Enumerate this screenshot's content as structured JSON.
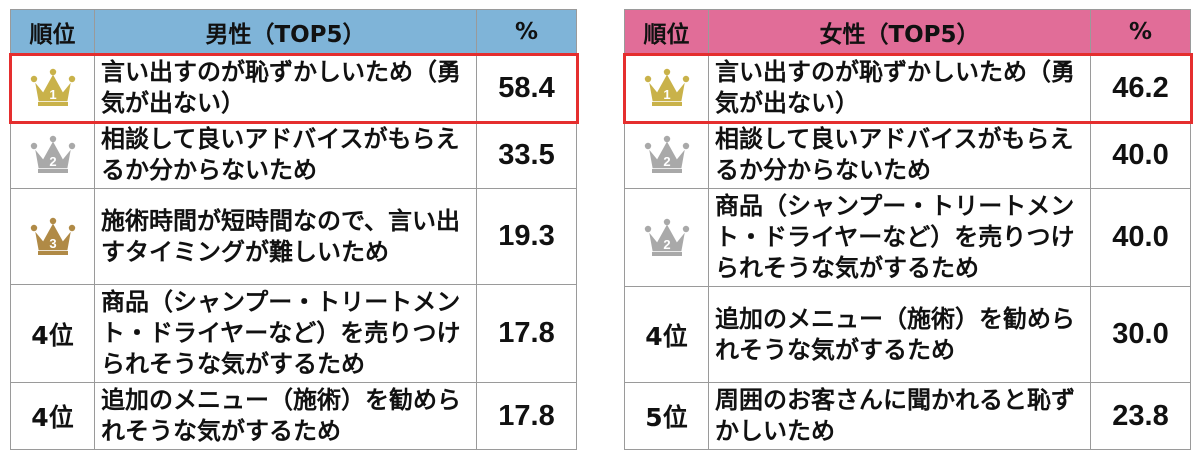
{
  "colors": {
    "male_header": "#7fb4d8",
    "female_header": "#e16d98",
    "highlight": "#e52e2e",
    "gold": "#c9b24a",
    "silver": "#a9a9a9",
    "bronze": "#b08a46"
  },
  "chart_data": [
    {
      "type": "table",
      "headers": {
        "rank": "順位",
        "title": "男性（TOP5）",
        "unit": "%"
      },
      "rows": [
        {
          "rank_icon": "gold-crown-icon",
          "rank_num": "1",
          "rank_label": "",
          "reason": "言い出すのが恥ずかしいため（勇気が出ない）",
          "value": "58.4"
        },
        {
          "rank_icon": "silver-crown-icon",
          "rank_num": "2",
          "rank_label": "",
          "reason": "相談して良いアドバイスがもらえるか分からないため",
          "value": "33.5"
        },
        {
          "rank_icon": "bronze-crown-icon",
          "rank_num": "3",
          "rank_label": "",
          "reason": "施術時間が短時間なので、言い出すタイミングが難しいため",
          "value": "19.3"
        },
        {
          "rank_icon": "",
          "rank_num": "",
          "rank_label": "4位",
          "reason": "商品（シャンプー・トリートメント・ドライヤーなど）を売りつけられそうな気がするため",
          "value": "17.8"
        },
        {
          "rank_icon": "",
          "rank_num": "",
          "rank_label": "4位",
          "reason": "追加のメニュー（施術）を勧められそうな気がするため",
          "value": "17.8"
        }
      ]
    },
    {
      "type": "table",
      "headers": {
        "rank": "順位",
        "title": "女性（TOP5）",
        "unit": "%"
      },
      "rows": [
        {
          "rank_icon": "gold-crown-icon",
          "rank_num": "1",
          "rank_label": "",
          "reason": "言い出すのが恥ずかしいため（勇気が出ない）",
          "value": "46.2"
        },
        {
          "rank_icon": "silver-crown-icon",
          "rank_num": "2",
          "rank_label": "",
          "reason": "相談して良いアドバイスがもらえるか分からないため",
          "value": "40.0"
        },
        {
          "rank_icon": "silver-crown-icon",
          "rank_num": "2",
          "rank_label": "",
          "reason": "商品（シャンプー・トリートメント・ドライヤーなど）を売りつけられそうな気がするため",
          "value": "40.0"
        },
        {
          "rank_icon": "",
          "rank_num": "",
          "rank_label": "4位",
          "reason": "追加のメニュー（施術）を勧められそうな気がするため",
          "value": "30.0"
        },
        {
          "rank_icon": "",
          "rank_num": "",
          "rank_label": "5位",
          "reason": "周囲のお客さんに聞かれると恥ずかしいため",
          "value": "23.8"
        }
      ]
    }
  ]
}
